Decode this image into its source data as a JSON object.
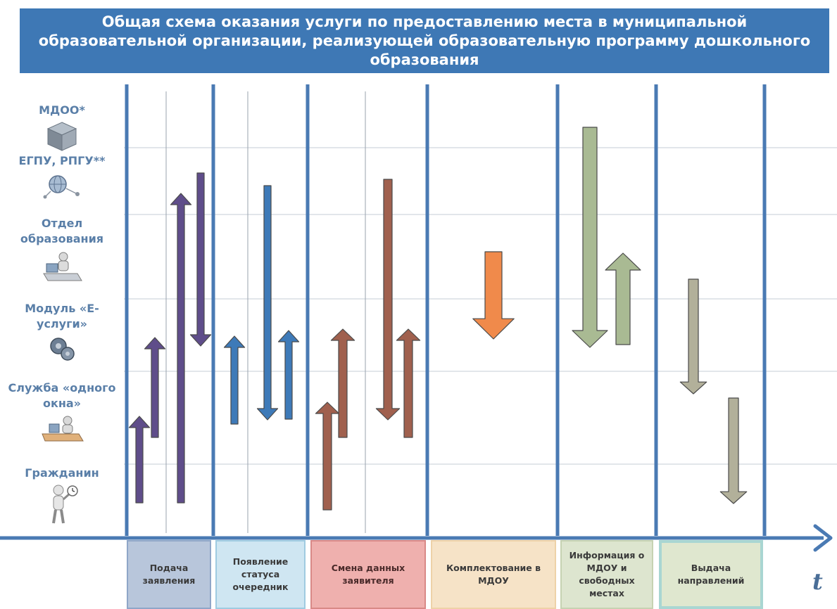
{
  "title": "Общая схема оказания услуги по предоставлению места в муниципальной образовательной организации, реализующей образовательную программу дошкольного образования",
  "actors": [
    {
      "label": "МДОО*",
      "icon": "building-cube-icon"
    },
    {
      "label": "ЕГПУ, РПГУ**",
      "icon": "globe-network-icon"
    },
    {
      "label": "Отдел образования",
      "icon": "office-worker-icon"
    },
    {
      "label": "Модуль «Е-услуги»",
      "icon": "gears-icon"
    },
    {
      "label": "Служба «одного окна»",
      "icon": "desk-worker-icon"
    },
    {
      "label": "Гражданин",
      "icon": "person-with-clock-icon"
    }
  ],
  "stages": [
    {
      "label": "Подача заявления",
      "bg": "#b8c6db",
      "border": "#8fa6c8"
    },
    {
      "label": "Появление статуса очередник",
      "bg": "#cfe6f2",
      "border": "#9fcbe1"
    },
    {
      "label": "Смена данных заявителя",
      "bg": "#efb0ae",
      "border": "#d98987"
    },
    {
      "label": "Комплектование в МДОУ",
      "bg": "#f6e3c7",
      "border": "#eed2a8"
    },
    {
      "label": "Информация о МДОУ и свободных местах",
      "bg": "#dde5cf",
      "border": "#c6d2b2"
    },
    {
      "label": "Выдача направлений",
      "bg": "#dfe7cf",
      "border": "#a9d6d2"
    }
  ],
  "axis_label": "t",
  "colors": {
    "header": "#3e78b5",
    "column_line": "#4a7ab3",
    "row_line": "#c5ccd6",
    "stage1_arrows": "#5f4d8a",
    "stage2_arrows": "#3e7ab8",
    "stage3_arrows": "#a0604e",
    "stage4_arrows": "#f08a4b",
    "stage5_arrows": "#a9ba93",
    "stage6_arrows": "#b2b09a",
    "arrow_outline": "#4a4a4a"
  },
  "arrows": [
    {
      "stage": 1,
      "from_actor": "Гражданин",
      "to_actor": "Служба «одного окна»"
    },
    {
      "stage": 1,
      "from_actor": "Служба «одного окна»",
      "to_actor": "Модуль «Е-услуги»"
    },
    {
      "stage": 1,
      "from_actor": "Гражданин",
      "to_actor": "ЕГПУ, РПГУ**"
    },
    {
      "stage": 1,
      "from_actor": "ЕГПУ, РПГУ**",
      "to_actor": "Модуль «Е-услуги»"
    },
    {
      "stage": 2,
      "from_actor": "Служба «одного окна»",
      "to_actor": "Модуль «Е-услуги»"
    },
    {
      "stage": 2,
      "from_actor": "ЕГПУ, РПГУ**",
      "to_actor": "Служба «одного окна»"
    },
    {
      "stage": 2,
      "from_actor": "Служба «одного окна»",
      "to_actor": "Модуль «Е-услуги»"
    },
    {
      "stage": 3,
      "from_actor": "Гражданин",
      "to_actor": "Служба «одного окна»"
    },
    {
      "stage": 3,
      "from_actor": "Служба «одного окна»",
      "to_actor": "Модуль «Е-услуги»"
    },
    {
      "stage": 3,
      "from_actor": "ЕГПУ, РПГУ**",
      "to_actor": "Служба «одного окна»"
    },
    {
      "stage": 3,
      "from_actor": "Служба «одного окна»",
      "to_actor": "Модуль «Е-услуги»"
    },
    {
      "stage": 4,
      "from_actor": "Отдел образования",
      "to_actor": "Модуль «Е-услуги»"
    },
    {
      "stage": 5,
      "from_actor": "МДОО*",
      "to_actor": "Модуль «Е-услуги»"
    },
    {
      "stage": 5,
      "from_actor": "Модуль «Е-услуги»",
      "to_actor": "Отдел образования"
    },
    {
      "stage": 6,
      "from_actor": "Отдел образования",
      "to_actor": "Служба «одного окна»"
    },
    {
      "stage": 6,
      "from_actor": "Служба «одного окна»",
      "to_actor": "Гражданин"
    }
  ]
}
